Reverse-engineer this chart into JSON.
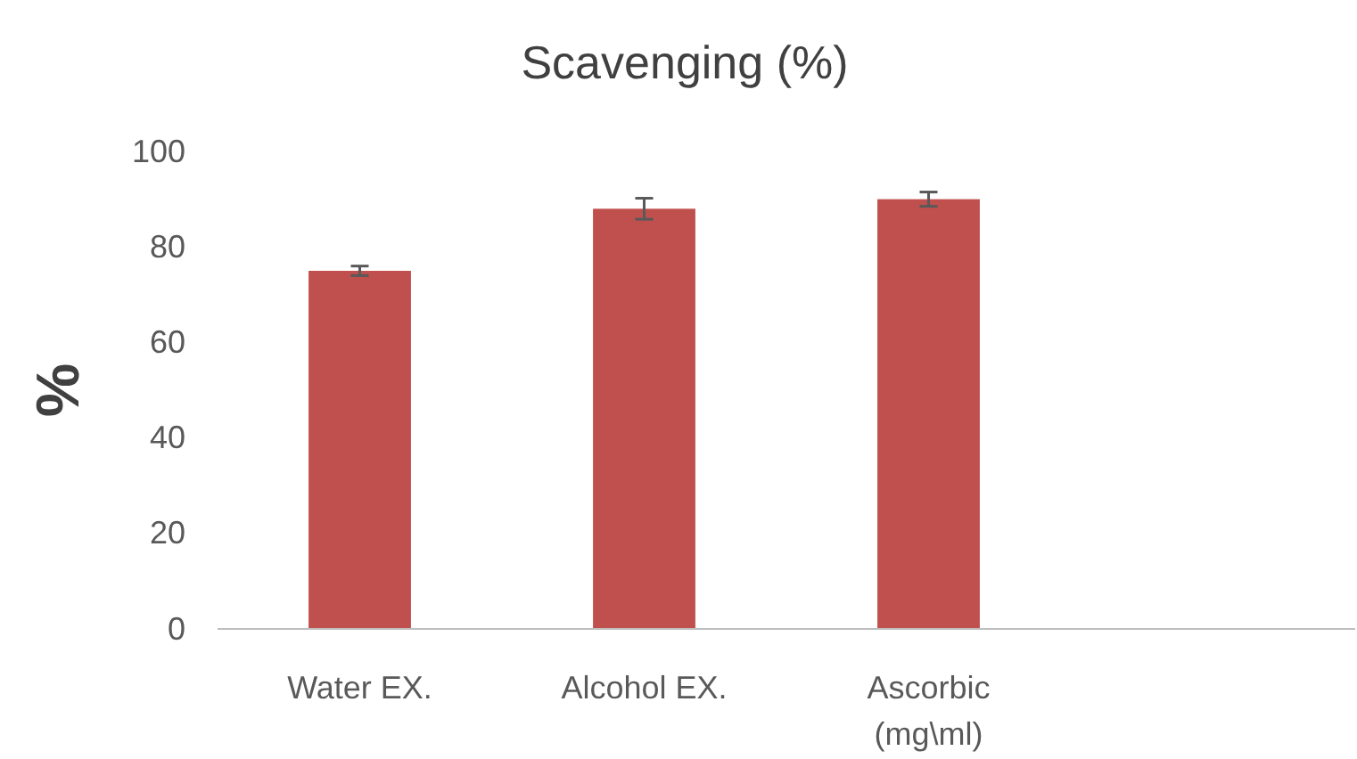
{
  "chart_data": {
    "type": "bar",
    "title": "Scavenging (%)",
    "ylabel": "%",
    "categories": [
      "Water EX.",
      "Alcohol EX.",
      "Ascorbic (mg\\ml)",
      null
    ],
    "values": [
      75,
      88,
      90,
      null
    ],
    "errors": [
      1,
      2.2,
      1.5,
      null
    ],
    "color": "#c0504d",
    "ylim": [
      0,
      100
    ],
    "yticks": [
      0,
      20,
      40,
      60,
      80,
      100
    ],
    "grid": false
  }
}
